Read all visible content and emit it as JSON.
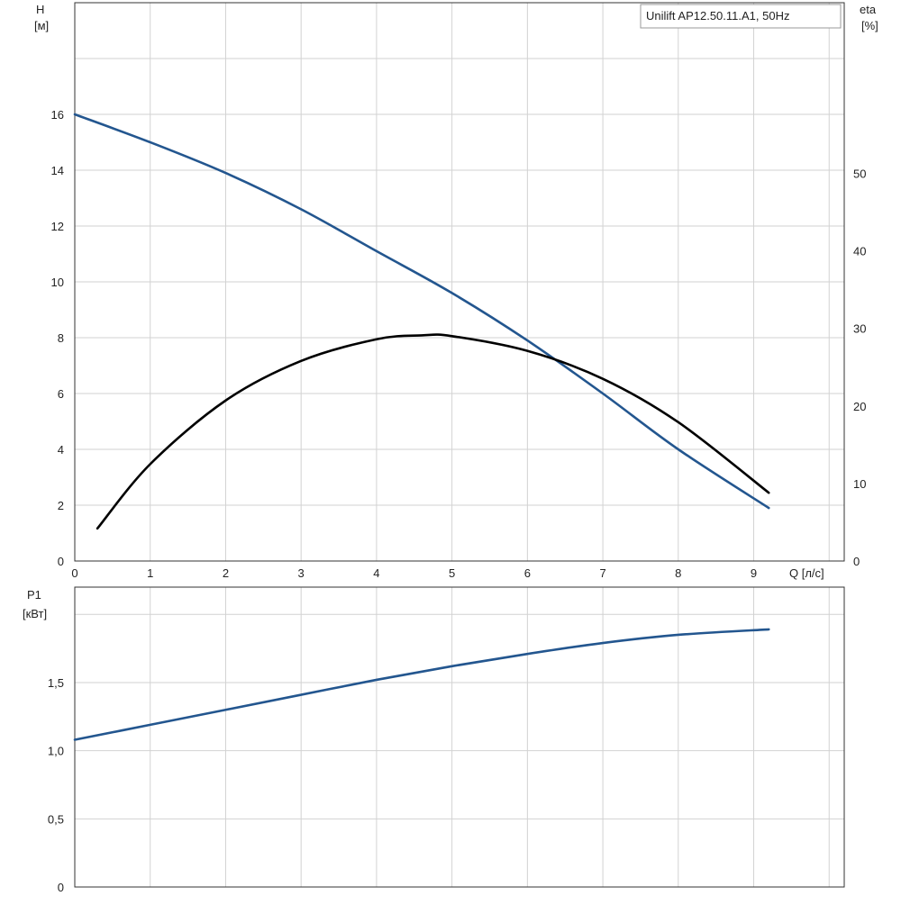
{
  "chart_data": [
    {
      "type": "line",
      "legend": "Unilift AP12.50.11.A1, 50Hz",
      "xlabel": "Q [л/с]",
      "ylabel_left": [
        "H",
        "[м]"
      ],
      "ylabel_right": [
        "eta",
        "[%]"
      ],
      "xlim": [
        0,
        10.2
      ],
      "ylim_left": [
        0,
        20
      ],
      "ylim_right": [
        0,
        72
      ],
      "x_ticks": [
        "0",
        "1",
        "2",
        "3",
        "4",
        "5",
        "6",
        "7",
        "8",
        "9"
      ],
      "y_ticks_left": [
        "0",
        "2",
        "4",
        "6",
        "8",
        "10",
        "12",
        "14",
        "16"
      ],
      "y_ticks_right": [
        "0",
        "10",
        "20",
        "30",
        "40",
        "50"
      ],
      "grid": true,
      "series": [
        {
          "axis": "left",
          "color": "#23568f",
          "x": [
            0,
            1,
            2,
            3,
            4,
            5,
            6,
            7,
            8,
            9.2
          ],
          "y": [
            16.0,
            15.0,
            13.9,
            12.6,
            11.1,
            9.6,
            7.9,
            6.0,
            4.0,
            1.9
          ]
        },
        {
          "axis": "right",
          "color": "#000000",
          "x": [
            0.3,
            1,
            2,
            3,
            4,
            4.6,
            5,
            6,
            7,
            8,
            9.2
          ],
          "y": [
            4.2,
            12.5,
            20.7,
            25.8,
            28.6,
            29.1,
            29.0,
            27.1,
            23.5,
            17.9,
            8.8
          ]
        }
      ]
    },
    {
      "type": "line",
      "ylabel": [
        "P1",
        "[кВт]"
      ],
      "xlim": [
        0,
        10.2
      ],
      "ylim": [
        0,
        2.2
      ],
      "y_ticks": [
        "0",
        "0,5",
        "1,0",
        "1,5"
      ],
      "grid": true,
      "series": [
        {
          "color": "#23568f",
          "x": [
            0,
            1,
            2,
            3,
            4,
            5,
            6,
            7,
            8,
            9.2
          ],
          "y": [
            1.08,
            1.19,
            1.3,
            1.41,
            1.52,
            1.62,
            1.71,
            1.79,
            1.85,
            1.89
          ]
        }
      ]
    }
  ]
}
